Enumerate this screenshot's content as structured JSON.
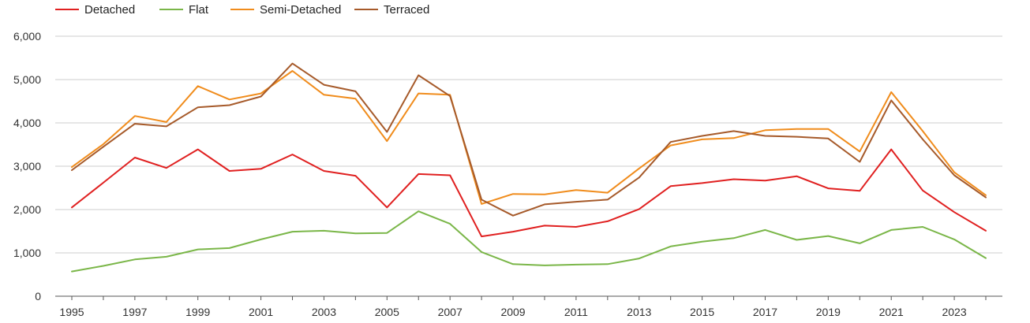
{
  "chart_data": {
    "type": "line",
    "title": "",
    "xlabel": "",
    "ylabel": "",
    "x": [
      1995,
      1996,
      1997,
      1998,
      1999,
      2000,
      2001,
      2002,
      2003,
      2004,
      2005,
      2006,
      2007,
      2008,
      2009,
      2010,
      2011,
      2012,
      2013,
      2014,
      2015,
      2016,
      2017,
      2018,
      2019,
      2020,
      2021,
      2022,
      2023,
      2024
    ],
    "x_tick_labels": [
      "1995",
      "1997",
      "1999",
      "2001",
      "2003",
      "2005",
      "2007",
      "2009",
      "2011",
      "2013",
      "2015",
      "2017",
      "2019",
      "2021",
      "2023"
    ],
    "ylim": [
      0,
      6000
    ],
    "y_tick_labels": [
      "0",
      "1,000",
      "2,000",
      "3,000",
      "4,000",
      "5,000",
      "6,000"
    ],
    "grid": true,
    "legend_position": "top-left",
    "series": [
      {
        "name": "Detached",
        "color": "#e02020",
        "values": [
          2050,
          2620,
          3200,
          2960,
          3390,
          2890,
          2940,
          3270,
          2890,
          2780,
          2050,
          2820,
          2790,
          1380,
          1490,
          1630,
          1600,
          1730,
          2010,
          2540,
          2610,
          2700,
          2670,
          2770,
          2490,
          2430,
          3390,
          2440,
          1940,
          1510
        ]
      },
      {
        "name": "Flat",
        "color": "#7ab648",
        "values": [
          570,
          700,
          850,
          910,
          1080,
          1110,
          1310,
          1490,
          1510,
          1450,
          1460,
          1960,
          1670,
          1020,
          740,
          710,
          730,
          740,
          870,
          1150,
          1260,
          1340,
          1530,
          1300,
          1390,
          1220,
          1530,
          1600,
          1310,
          880
        ]
      },
      {
        "name": "Semi-Detached",
        "color": "#f08c1c",
        "values": [
          2980,
          3510,
          4160,
          4020,
          4850,
          4540,
          4680,
          5200,
          4650,
          4560,
          3580,
          4680,
          4650,
          2130,
          2360,
          2350,
          2450,
          2390,
          2950,
          3480,
          3620,
          3650,
          3830,
          3860,
          3860,
          3340,
          4710,
          3810,
          2860,
          2330
        ]
      },
      {
        "name": "Terraced",
        "color": "#a65a2a",
        "values": [
          2910,
          3450,
          3980,
          3920,
          4360,
          4410,
          4610,
          5370,
          4880,
          4730,
          3790,
          5100,
          4620,
          2230,
          1860,
          2120,
          2180,
          2230,
          2740,
          3560,
          3700,
          3810,
          3700,
          3680,
          3640,
          3100,
          4520,
          3620,
          2790,
          2280
        ]
      }
    ]
  }
}
